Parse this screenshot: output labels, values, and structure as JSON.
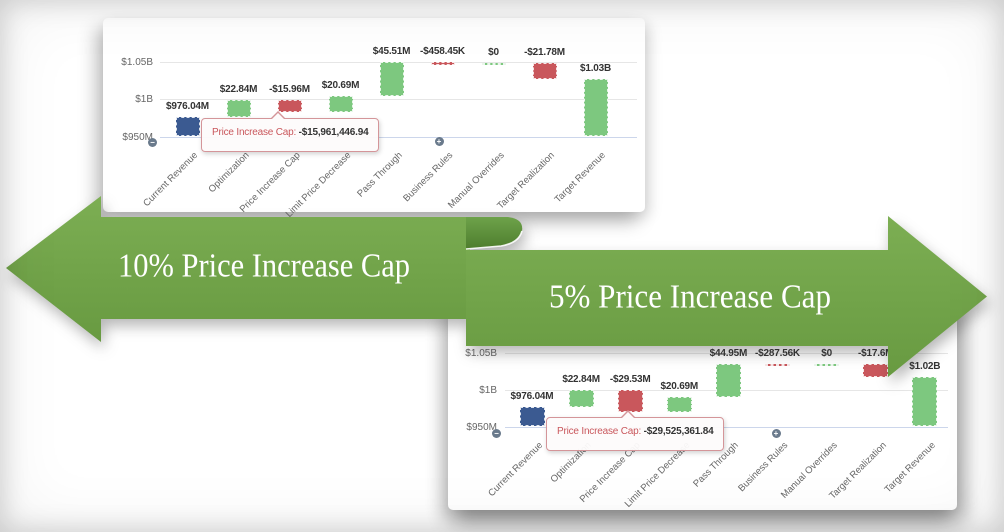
{
  "banners": {
    "left_label": "10% Price Increase Cap",
    "right_label": "5% Price Increase Cap",
    "fill_color": "#71a347"
  },
  "icons": {
    "zoom_out": "−",
    "zoom_in": "+"
  },
  "colors": {
    "initial_bar": "#3b5a91",
    "positive_bar": "#7dc87f",
    "negative_bar": "#c9575c",
    "axis_line": "#ccd6eb",
    "grid_line": "#e6e6e6",
    "value_text": "#333333",
    "tick_text": "#666666",
    "tooltip_label": "#c9575c"
  },
  "chart_data": [
    {
      "type": "waterfall",
      "title": "10% Price Increase Cap",
      "y_ticks": [
        "$1.05B",
        "$1B",
        "$950M"
      ],
      "y_range_musd": [
        950,
        1050
      ],
      "grid": true,
      "categories": [
        "Current Revenue",
        "Optimization",
        "Price Increase Cap",
        "Limit Price Decrease",
        "Pass Through",
        "Business Rules",
        "Manual Overrides",
        "Target Realization",
        "Target Revenue"
      ],
      "columns": [
        {
          "category": "Current Revenue",
          "value_musd": 976.04,
          "label": "$976.04M",
          "role": "initial"
        },
        {
          "category": "Optimization",
          "value_musd": 22.84,
          "label": "$22.84M",
          "role": "increase"
        },
        {
          "category": "Price Increase Cap",
          "value_musd": -15.96,
          "label": "-$15.96M",
          "role": "decrease"
        },
        {
          "category": "Limit Price Decrease",
          "value_musd": 20.69,
          "label": "$20.69M",
          "role": "increase"
        },
        {
          "category": "Pass Through",
          "value_musd": 45.51,
          "label": "$45.51M",
          "role": "increase"
        },
        {
          "category": "Business Rules",
          "value_musd": -0.45845,
          "label": "-$458.45K",
          "role": "decrease"
        },
        {
          "category": "Manual Overrides",
          "value_musd": 0,
          "label": "$0",
          "role": "increase"
        },
        {
          "category": "Target Realization",
          "value_musd": -21.78,
          "label": "-$21.78M",
          "role": "decrease"
        },
        {
          "category": "Target Revenue",
          "value_musd": 1026.88,
          "label": "$1.03B",
          "role": "total"
        }
      ],
      "tooltip": {
        "label": "Price Increase Cap:",
        "value": "-$15,961,446.94"
      }
    },
    {
      "type": "waterfall",
      "title": "5% Price Increase Cap",
      "y_ticks": [
        "$1.05B",
        "$1B",
        "$950M"
      ],
      "y_range_musd": [
        950,
        1050
      ],
      "grid": true,
      "categories": [
        "Current Revenue",
        "Optimization",
        "Price Increase Cap",
        "Limit Price Decrease",
        "Pass Through",
        "Business Rules",
        "Manual Overrides",
        "Target Realization",
        "Target Revenue"
      ],
      "columns": [
        {
          "category": "Current Revenue",
          "value_musd": 976.04,
          "label": "$976.04M",
          "role": "initial"
        },
        {
          "category": "Optimization",
          "value_musd": 22.84,
          "label": "$22.84M",
          "role": "increase"
        },
        {
          "category": "Price Increase Cap",
          "value_musd": -29.53,
          "label": "-$29.53M",
          "role": "decrease"
        },
        {
          "category": "Limit Price Decrease",
          "value_musd": 20.69,
          "label": "$20.69M",
          "role": "increase"
        },
        {
          "category": "Pass Through",
          "value_musd": 44.95,
          "label": "$44.95M",
          "role": "increase"
        },
        {
          "category": "Business Rules",
          "value_musd": -0.28756,
          "label": "-$287.56K",
          "role": "decrease"
        },
        {
          "category": "Manual Overrides",
          "value_musd": 0,
          "label": "$0",
          "role": "increase"
        },
        {
          "category": "Target Realization",
          "value_musd": -17.6,
          "label": "-$17.6M",
          "role": "decrease"
        },
        {
          "category": "Target Revenue",
          "value_musd": 1017.1,
          "label": "$1.02B",
          "role": "total"
        }
      ],
      "tooltip": {
        "label": "Price Increase Cap:",
        "value": "-$29,525,361.84"
      }
    }
  ]
}
